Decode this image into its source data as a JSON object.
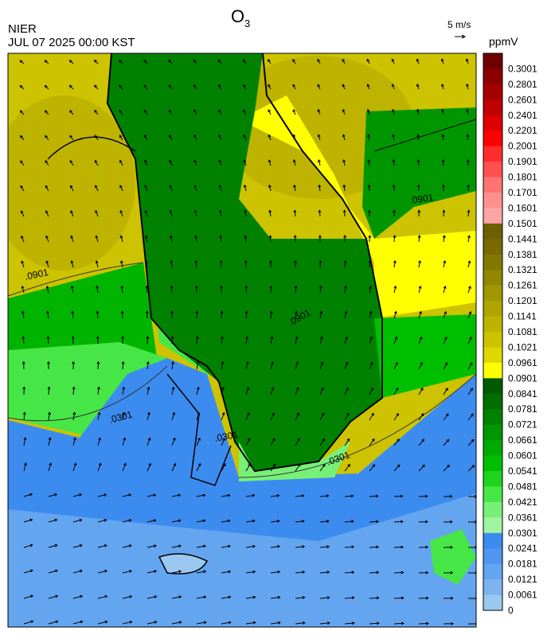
{
  "header": {
    "title": "O",
    "title_subscript": "3",
    "agency": "NIER",
    "datetime": "JUL 07 2025 00:00 KST",
    "wind_scale": "5 m/s"
  },
  "colorbar": {
    "unit": "ppmV",
    "levels": [
      {
        "label": "0.3001",
        "color": "#6e0000"
      },
      {
        "label": "0.2801",
        "color": "#8c0000"
      },
      {
        "label": "0.2601",
        "color": "#a50000"
      },
      {
        "label": "0.2401",
        "color": "#be0000"
      },
      {
        "label": "0.2201",
        "color": "#dc0000"
      },
      {
        "label": "0.2001",
        "color": "#ff0000"
      },
      {
        "label": "0.1901",
        "color": "#ff2d2d"
      },
      {
        "label": "0.1801",
        "color": "#ff5050"
      },
      {
        "label": "0.1701",
        "color": "#ff7373"
      },
      {
        "label": "0.1601",
        "color": "#ff9090"
      },
      {
        "label": "0.1501",
        "color": "#ffa5a5"
      },
      {
        "label": "0.1441",
        "color": "#6e5f00"
      },
      {
        "label": "0.1381",
        "color": "#786900"
      },
      {
        "label": "0.1321",
        "color": "#827800"
      },
      {
        "label": "0.1261",
        "color": "#918700"
      },
      {
        "label": "0.1201",
        "color": "#a09600"
      },
      {
        "label": "0.1141",
        "color": "#afa500"
      },
      {
        "label": "0.1081",
        "color": "#beb400"
      },
      {
        "label": "0.1021",
        "color": "#cdc300"
      },
      {
        "label": "0.0961",
        "color": "#e1d700"
      },
      {
        "label": "0.0901",
        "color": "#ffff00"
      },
      {
        "label": "0.0841",
        "color": "#005a00"
      },
      {
        "label": "0.0781",
        "color": "#006e00"
      },
      {
        "label": "0.0721",
        "color": "#008200"
      },
      {
        "label": "0.0661",
        "color": "#009600"
      },
      {
        "label": "0.0601",
        "color": "#00aa00"
      },
      {
        "label": "0.0541",
        "color": "#00be00"
      },
      {
        "label": "0.0481",
        "color": "#1ed21e"
      },
      {
        "label": "0.0421",
        "color": "#46e646"
      },
      {
        "label": "0.0361",
        "color": "#78f078"
      },
      {
        "label": "0.0301",
        "color": "#a0f5a0"
      },
      {
        "label": "0.0241",
        "color": "#3c8cf0"
      },
      {
        "label": "0.0181",
        "color": "#5096f0"
      },
      {
        "label": "0.0121",
        "color": "#64a5f0"
      },
      {
        "label": "0.0061",
        "color": "#7db4f0"
      },
      {
        "label": "0",
        "color": "#9bc8f0"
      }
    ]
  },
  "contour_labels": [
    ".0901",
    ".0301"
  ]
}
